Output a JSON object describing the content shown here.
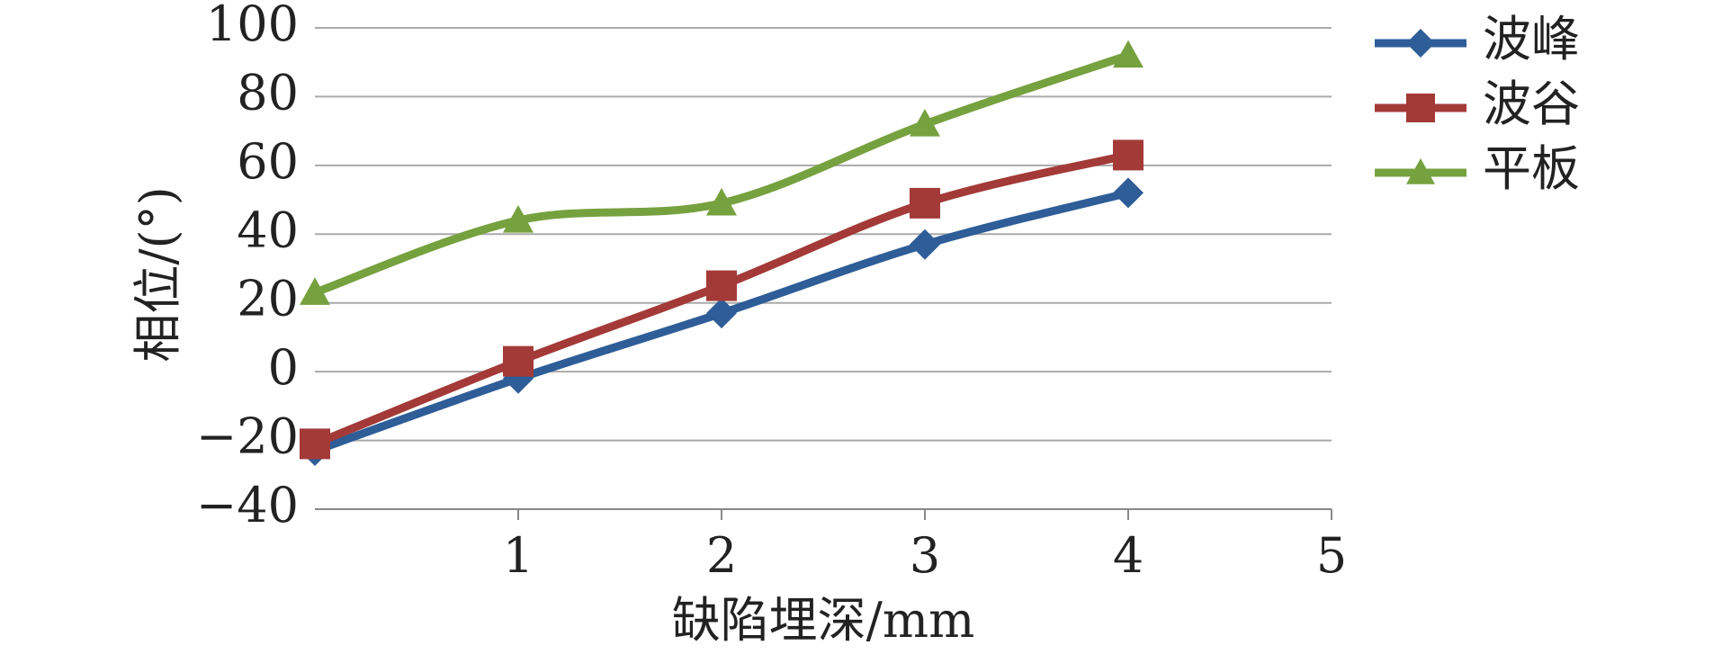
{
  "chart_data": {
    "type": "line",
    "x_label": "缺陷埋深/mm",
    "y_label": "相位/(°)",
    "x": [
      0,
      1,
      2,
      3,
      4
    ],
    "xlim": [
      0,
      5
    ],
    "xticks": [
      1,
      2,
      3,
      4,
      5
    ],
    "ylim": [
      -40,
      100
    ],
    "yticks": [
      {
        "value": -40,
        "label": "−40"
      },
      {
        "value": -20,
        "label": "−20"
      },
      0,
      20,
      40,
      60,
      80,
      100
    ],
    "grid": true,
    "legend": "right",
    "series": [
      {
        "name": "波峰",
        "color": "#2e5d98",
        "marker": "diamond",
        "values": [
          -23,
          -2,
          17,
          37,
          52
        ]
      },
      {
        "name": "波谷",
        "color": "#a33a38",
        "marker": "square",
        "values": [
          -21,
          3,
          25,
          49,
          63
        ]
      },
      {
        "name": "平板",
        "color": "#76a13f",
        "marker": "triangle",
        "values": [
          23,
          44,
          49,
          72,
          92
        ]
      }
    ]
  }
}
